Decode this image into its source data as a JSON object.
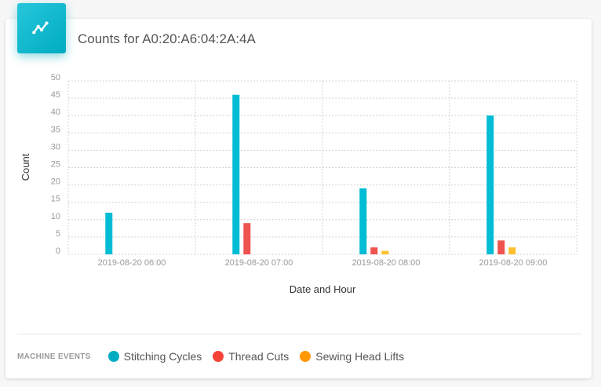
{
  "card": {
    "title": "Counts for A0:20:A6:04:2A:4A",
    "icon": "line-chart-icon",
    "icon_color": "#00acc1"
  },
  "legend": {
    "title": "MACHINE EVENTS",
    "items": [
      {
        "label": "Stitching Cycles",
        "color": "#00acc1"
      },
      {
        "label": "Thread Cuts",
        "color": "#f44336"
      },
      {
        "label": "Sewing Head Lifts",
        "color": "#ff9800"
      }
    ]
  },
  "chart_data": {
    "type": "bar",
    "xlabel": "Date and Hour",
    "ylabel": "Count",
    "ylim": [
      0,
      50
    ],
    "yticks": [
      0,
      5,
      10,
      15,
      20,
      25,
      30,
      35,
      40,
      45,
      50
    ],
    "grid": true,
    "legend_position": "bottom-left",
    "categories": [
      "2019-08-20 06:00",
      "2019-08-20 07:00",
      "2019-08-20 08:00",
      "2019-08-20 09:00"
    ],
    "series": [
      {
        "name": "Stitching Cycles",
        "color": "#00bcd4",
        "values": [
          12,
          46,
          19,
          40
        ]
      },
      {
        "name": "Thread Cuts",
        "color": "#ef5350",
        "values": [
          0,
          9,
          2,
          4
        ]
      },
      {
        "name": "Sewing Head Lifts",
        "color": "#fbc02d",
        "values": [
          0,
          0,
          1,
          2
        ]
      }
    ]
  }
}
